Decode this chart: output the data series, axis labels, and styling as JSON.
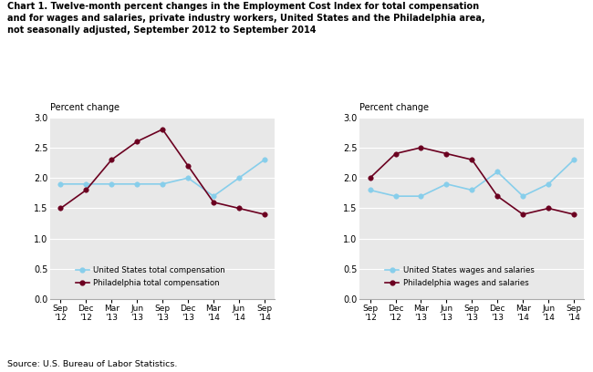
{
  "title_line1": "Chart 1. Twelve-month percent changes in the Employment Cost Index for total compensation",
  "title_line2": "and for wages and salaries, private industry workers, United States and the Philadelphia area,",
  "title_line3": "not seasonally adjusted, September 2012 to September 2014",
  "x_labels": [
    "Sep\n'12",
    "Dec\n'12",
    "Mar\n'13",
    "Jun\n'13",
    "Sep\n'13",
    "Dec\n'13",
    "Mar\n'14",
    "Jun\n'14",
    "Sep\n'14"
  ],
  "ylabel": "Percent change",
  "ylim": [
    0.0,
    3.0
  ],
  "yticks": [
    0.0,
    0.5,
    1.0,
    1.5,
    2.0,
    2.5,
    3.0
  ],
  "left_us_total_comp": [
    1.9,
    1.9,
    1.9,
    1.9,
    1.9,
    2.0,
    1.7,
    2.0,
    2.3
  ],
  "left_philly_total_comp": [
    1.5,
    1.8,
    2.3,
    2.6,
    2.8,
    2.2,
    1.6,
    1.5,
    1.4
  ],
  "right_us_wages": [
    1.8,
    1.7,
    1.7,
    1.9,
    1.8,
    2.1,
    1.7,
    1.9,
    2.3
  ],
  "right_philly_wages": [
    2.0,
    2.4,
    2.5,
    2.4,
    2.3,
    1.7,
    1.4,
    1.5,
    1.4
  ],
  "left_legend_labels": [
    "United States total compensation",
    "Philadelphia total compensation"
  ],
  "right_legend_labels": [
    "United States wages and salaries",
    "Philadelphia wages and salaries"
  ],
  "us_color": "#87CEEB",
  "philly_color": "#6B0020",
  "source": "Source: U.S. Bureau of Labor Statistics.",
  "background_color": "#e8e8e8"
}
